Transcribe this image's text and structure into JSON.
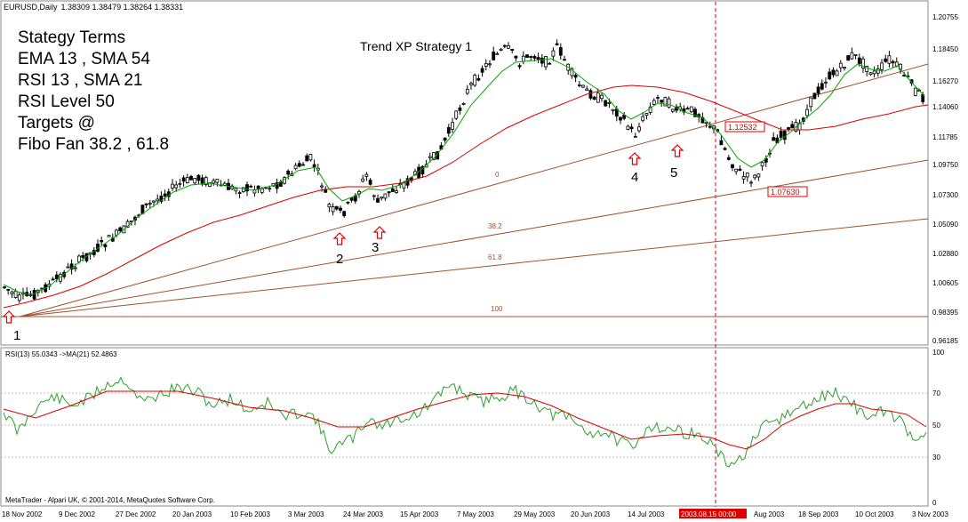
{
  "window": {
    "symbol_label": "EURUSD,Daily",
    "ohlc": "1.38309 1.38479 1.38264 1.38331",
    "strategy_title": "Trend XP Strategy 1",
    "terms": [
      "Stategy Terms",
      "EMA 13 , SMA 54",
      "RSI 13 , SMA 21",
      "RSI Level 50",
      "Targets @",
      "Fibo Fan 38.2 , 61.8"
    ],
    "rsi_header": "RSI(13) 55.0343  ->MA(21) 52.4863",
    "copyright": "MetaTrader - Alpari UK, © 2001-2014, MetaQuotes Software Corp.",
    "price_ticks": [
      "1.20755",
      "1.18450",
      "1.16270",
      "1.14060",
      "1.11785",
      "1.09750",
      "1.07300",
      "1.05090",
      "1.02880",
      "1.00605",
      "0.98395",
      "0.96185"
    ],
    "rsi_ticks": [
      "100",
      "70",
      "50",
      "30",
      "0"
    ],
    "date_ticks": [
      "18 Nov 2002",
      "9 Dec 2002",
      "27 Dec 2002",
      "20 Jan 2003",
      "10 Feb 2003",
      "3 Mar 2003",
      "24 Mar 2003",
      "15 Apr 2003",
      "7 May 2003",
      "29 May 2003",
      "20 Jun 2003",
      "14 Jul 2003",
      "2003.08.15 00:00",
      "Aug 2003",
      "18 Sep 2003",
      "10 Oct 2003",
      "3 Nov 2003"
    ],
    "fan_labels": [
      "0",
      "38.2",
      "61.8",
      "100"
    ],
    "point_labels": [
      "1",
      "2",
      "3",
      "4",
      "5"
    ],
    "price_labels": [
      "1.12532",
      "1.07630"
    ],
    "colors": {
      "bull": "#ffffff",
      "bear": "#000000",
      "ema": "#00aa00",
      "sma": "#dd0000",
      "fan": "#a0522d",
      "rsi": "#2e9e2e",
      "rsi_ma": "#dd0000",
      "marker": "#dd0000"
    }
  }
}
